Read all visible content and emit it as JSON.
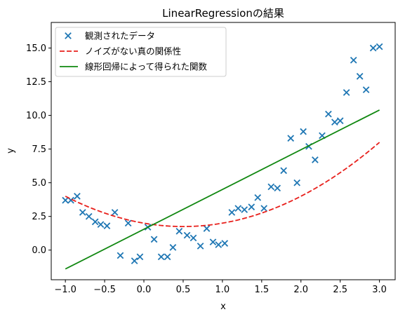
{
  "chart_data": {
    "type": "scatter",
    "title": "LinearRegressionの結果",
    "xlabel": "x",
    "ylabel": "y",
    "xlim": [
      -1.18,
      3.2
    ],
    "ylim": [
      -2.2,
      16.9
    ],
    "xticks": [
      -1.0,
      -0.5,
      0.0,
      0.5,
      1.0,
      1.5,
      2.0,
      2.5,
      3.0
    ],
    "xtick_labels": [
      "−1.0",
      "−0.5",
      "0.0",
      "0.5",
      "1.0",
      "1.5",
      "2.0",
      "2.5",
      "3.0"
    ],
    "yticks": [
      0.0,
      2.5,
      5.0,
      7.5,
      10.0,
      12.5,
      15.0
    ],
    "ytick_labels": [
      "0.0",
      "2.5",
      "5.0",
      "7.5",
      "10.0",
      "12.5",
      "15.0"
    ],
    "grid": false,
    "legend_position": "top-left",
    "series": [
      {
        "name": "観測されたデータ",
        "kind": "scatter",
        "marker": "x",
        "color": "#1f77b4",
        "points": [
          [
            -1.0,
            3.7
          ],
          [
            -0.93,
            3.7
          ],
          [
            -0.85,
            4.0
          ],
          [
            -0.78,
            2.8
          ],
          [
            -0.7,
            2.5
          ],
          [
            -0.62,
            2.1
          ],
          [
            -0.55,
            1.9
          ],
          [
            -0.47,
            1.8
          ],
          [
            -0.37,
            2.8
          ],
          [
            -0.3,
            -0.4
          ],
          [
            -0.2,
            2.0
          ],
          [
            -0.12,
            -0.8
          ],
          [
            -0.05,
            -0.5
          ],
          [
            0.05,
            1.7
          ],
          [
            0.13,
            0.8
          ],
          [
            0.22,
            -0.5
          ],
          [
            0.3,
            -0.5
          ],
          [
            0.37,
            0.2
          ],
          [
            0.45,
            1.4
          ],
          [
            0.55,
            1.1
          ],
          [
            0.63,
            0.9
          ],
          [
            0.72,
            0.3
          ],
          [
            0.8,
            1.6
          ],
          [
            0.88,
            0.6
          ],
          [
            0.95,
            0.4
          ],
          [
            1.03,
            0.5
          ],
          [
            1.12,
            2.8
          ],
          [
            1.2,
            3.1
          ],
          [
            1.28,
            3.0
          ],
          [
            1.37,
            3.2
          ],
          [
            1.45,
            3.9
          ],
          [
            1.53,
            3.1
          ],
          [
            1.62,
            4.7
          ],
          [
            1.7,
            4.6
          ],
          [
            1.78,
            5.9
          ],
          [
            1.87,
            8.3
          ],
          [
            1.95,
            5.0
          ],
          [
            2.03,
            8.8
          ],
          [
            2.1,
            7.7
          ],
          [
            2.18,
            6.7
          ],
          [
            2.27,
            8.5
          ],
          [
            2.35,
            10.1
          ],
          [
            2.43,
            9.5
          ],
          [
            2.5,
            9.6
          ],
          [
            2.58,
            11.7
          ],
          [
            2.67,
            14.1
          ],
          [
            2.75,
            12.9
          ],
          [
            2.83,
            11.9
          ],
          [
            2.92,
            15.0
          ],
          [
            3.0,
            15.1
          ]
        ]
      },
      {
        "name": "ノイズがない真の関係性",
        "kind": "line",
        "style": "dashed",
        "color": "#e8201c",
        "function": "x^2 - x + 2",
        "x_range": [
          -1.0,
          3.0
        ]
      },
      {
        "name": "線形回帰によって得られた関数",
        "kind": "line",
        "style": "solid",
        "color": "#118811",
        "points": [
          [
            -1.0,
            -1.4
          ],
          [
            3.0,
            10.4
          ]
        ]
      }
    ]
  }
}
